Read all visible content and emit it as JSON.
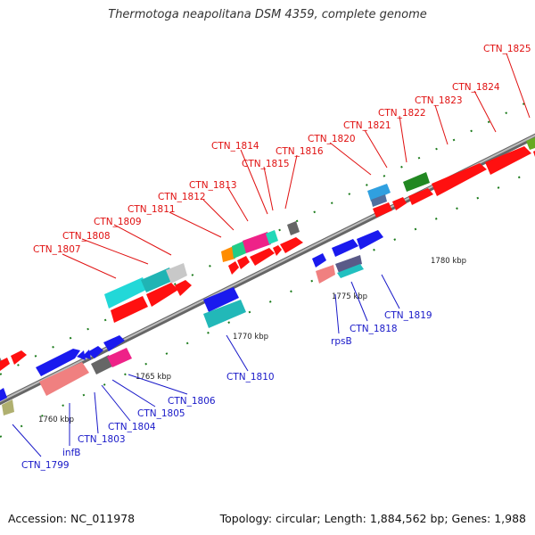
{
  "title": "Thermotoga neapolitana DSM 4359, complete genome",
  "footer": {
    "accession": "Accession: NC_011978",
    "summary": "Topology: circular; Length: 1,884,562 bp; Genes: 1,988"
  },
  "colors": {
    "top_label": "#e01010",
    "bottom_label": "#1818c8",
    "backbone": "#8a8a8a",
    "tick_mark": "#1a7a1a"
  },
  "scale_ticks": [
    "1760 kbp",
    "1765 kbp",
    "1770 kbp",
    "1775 kbp",
    "1780 kbp"
  ],
  "genes_top": [
    "CTN_1807",
    "CTN_1808",
    "CTN_1809",
    "CTN_1811",
    "CTN_1812",
    "CTN_1813",
    "CTN_1814",
    "CTN_1815",
    "CTN_1816",
    "CTN_1820",
    "CTN_1821",
    "CTN_1822",
    "CTN_1823",
    "CTN_1824",
    "CTN_1825"
  ],
  "genes_bottom": [
    "CTN_1799",
    "infB",
    "CTN_1803",
    "CTN_1804",
    "CTN_1805",
    "CTN_1806",
    "CTN_1810",
    "rpsB",
    "CTN_1818",
    "CTN_1819"
  ]
}
